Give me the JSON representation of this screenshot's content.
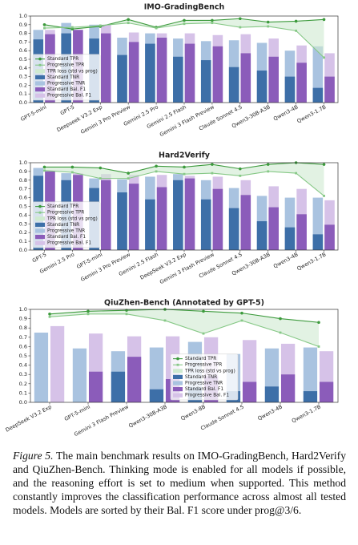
{
  "chart_data": [
    {
      "type": "bar",
      "title": "IMO-GradingBench",
      "categories": [
        "GPT-5-mini",
        "GPT-5",
        "Deepseek V3.2 Exp",
        "Gemini 3 Pro Preview",
        "Gemini 2.5 Pro",
        "Gemini 2.5 Flash",
        "Gemini 3 Flash Preview",
        "Claude Sonnet 4.5",
        "Qwen3-30B-A3B",
        "Qwen3-4B",
        "Qwen3-1.7B"
      ],
      "line_series": [
        {
          "name": "Standard TPR",
          "color": "#3c9a3c",
          "marker": "circle",
          "values": [
            0.9,
            0.85,
            0.88,
            0.96,
            0.87,
            0.95,
            0.95,
            0.97,
            0.93,
            0.94,
            0.96
          ]
        },
        {
          "name": "Progressive TPR",
          "color": "#86c886",
          "marker": "square",
          "values": [
            0.86,
            0.87,
            0.89,
            0.92,
            0.86,
            0.91,
            0.92,
            0.87,
            0.88,
            0.83,
            0.52
          ]
        }
      ],
      "area": {
        "name": "TPR loss (std vs prog)",
        "color": "#cfead0"
      },
      "bar_series": [
        [
          {
            "name": "Standard TNR",
            "color": "#3d6fa8",
            "values": [
              0.73,
              0.8,
              0.74,
              0.55,
              0.68,
              0.53,
              0.49,
              0.41,
              0.37,
              0.3,
              0.17
            ]
          },
          {
            "name": "Progressive TNR",
            "color": "#a9c3e0",
            "values": [
              0.84,
              0.92,
              0.9,
              0.75,
              0.8,
              0.74,
              0.71,
              0.72,
              0.69,
              0.6,
              0.65
            ]
          }
        ],
        [
          {
            "name": "Standard Bal. F1",
            "color": "#8b5cba",
            "values": [
              0.79,
              0.84,
              0.8,
              0.7,
              0.75,
              0.68,
              0.65,
              0.57,
              0.53,
              0.46,
              0.3
            ]
          },
          {
            "name": "Progressive Bal. F1",
            "color": "#d6c2e8",
            "values": [
              0.84,
              0.84,
              0.9,
              0.81,
              0.8,
              0.8,
              0.78,
              0.79,
              0.74,
              0.66,
              0.57
            ]
          }
        ]
      ],
      "ylim": [
        0,
        1
      ],
      "yticks": [
        {
          "value": 0,
          "label": "0.0"
        },
        0.1,
        0.2,
        0.3,
        0.4,
        0.5,
        0.6,
        0.7,
        0.8,
        0.9,
        {
          "value": 1,
          "label": "1.0"
        }
      ],
      "grid": false,
      "legend": "lower left"
    },
    {
      "type": "bar",
      "title": "Hard2Verify",
      "categories": [
        "GPT-5",
        "Gemini 2.5 Pro",
        "GPT-5-mini",
        "Gemini 3 Pro Preview",
        "Gemini 2.5 Flash",
        "DeepSeek V3.2 Exp",
        "Gemini 3 Flash Preview",
        "Claude Sonnet 4.5",
        "Qwen3-30B-A3B",
        "Qwen3-4B",
        "Qwen3-1.7B"
      ],
      "line_series": [
        {
          "name": "Standard TPR",
          "color": "#3c9a3c",
          "marker": "circle",
          "values": [
            0.95,
            0.95,
            0.94,
            0.88,
            0.96,
            0.95,
            0.98,
            0.93,
            0.98,
            1.0,
            0.98
          ]
        },
        {
          "name": "Progressive TPR",
          "color": "#86c886",
          "marker": "square",
          "values": [
            0.91,
            0.89,
            0.82,
            0.82,
            0.9,
            0.87,
            0.88,
            0.85,
            0.9,
            0.88,
            0.62
          ]
        }
      ],
      "area": {
        "name": "TPR loss (std vs prog)",
        "color": "#cfead0"
      },
      "bar_series": [
        [
          {
            "name": "Standard TNR",
            "color": "#3d6fa8",
            "values": [
              0.85,
              0.8,
              0.71,
              0.66,
              0.58,
              0.8,
              0.58,
              0.48,
              0.33,
              0.26,
              0.18
            ]
          },
          {
            "name": "Progressive TNR",
            "color": "#a9c3e0",
            "values": [
              0.94,
              0.88,
              0.82,
              0.81,
              0.84,
              0.87,
              0.8,
              0.71,
              0.62,
              0.6,
              0.6
            ]
          }
        ],
        [
          {
            "name": "Standard Bal. F1",
            "color": "#8b5cba",
            "values": [
              0.9,
              0.86,
              0.8,
              0.76,
              0.72,
              0.82,
              0.7,
              0.63,
              0.49,
              0.41,
              0.29
            ]
          },
          {
            "name": "Progressive Bal. F1",
            "color": "#d6c2e8",
            "values": [
              0.91,
              0.88,
              0.87,
              0.86,
              0.86,
              0.85,
              0.84,
              0.8,
              0.73,
              0.7,
              0.57
            ]
          }
        ]
      ],
      "ylim": [
        0,
        1
      ],
      "yticks": [
        {
          "value": 0,
          "label": "0.0"
        },
        0.1,
        0.2,
        0.3,
        0.4,
        0.5,
        0.6,
        0.7,
        0.8,
        0.9,
        {
          "value": 1,
          "label": "1.0"
        }
      ],
      "grid": false,
      "legend": "lower left"
    },
    {
      "type": "bar",
      "title": "QiuZhen-Bench (Annotated by GPT-5)",
      "categories": [
        "DeepSeek V3.2 Exp",
        "GPT-5-mini",
        "Gemini 3 Flash Preview",
        "Qwen3-30B-A3B",
        "Qwen3-8B",
        "Claude Sonnet 4.5",
        "Qwen3-4B",
        "Qwen3-1.7B"
      ],
      "line_series": [
        {
          "name": "Standard TPR",
          "color": "#3c9a3c",
          "marker": "circle",
          "values": [
            0.95,
            0.98,
            0.99,
            1.0,
            0.98,
            0.96,
            0.9,
            0.86
          ]
        },
        {
          "name": "Progressive TPR",
          "color": "#86c886",
          "marker": "square",
          "values": [
            0.92,
            0.95,
            0.95,
            0.88,
            0.74,
            0.88,
            0.75,
            0.6
          ]
        }
      ],
      "area": {
        "name": "TPR loss (std vs prog)",
        "color": "#cfead0"
      },
      "bar_series": [
        [
          {
            "name": "Standard TNR",
            "color": "#3d6fa8",
            "values": [
              null,
              null,
              0.33,
              0.14,
              0.16,
              0.12,
              0.17,
              0.12
            ]
          },
          {
            "name": "Progressive TNR",
            "color": "#a9c3e0",
            "values": [
              0.75,
              0.58,
              0.55,
              0.59,
              0.65,
              0.52,
              0.58,
              0.59
            ]
          }
        ],
        [
          {
            "name": "Standard Bal. F1",
            "color": "#8b5cba",
            "values": [
              null,
              0.33,
              0.49,
              0.25,
              0.28,
              0.22,
              0.3,
              0.22
            ]
          },
          {
            "name": "Progressive Bal. F1",
            "color": "#d6c2e8",
            "values": [
              0.82,
              0.74,
              0.71,
              0.71,
              0.7,
              0.67,
              0.63,
              0.55
            ]
          }
        ]
      ],
      "ylim": [
        0,
        1
      ],
      "yticks": [
        {
          "value": 0,
          "label": "0.0"
        },
        0.1,
        0.2,
        0.3,
        0.4,
        0.5,
        0.6,
        0.7,
        0.8,
        0.9,
        {
          "value": 1,
          "label": "1.0"
        }
      ],
      "grid": false,
      "legend": "lower center"
    }
  ],
  "caption": {
    "label": "Figure 5.",
    "text": "The main benchmark results on IMO-GradingBench, Hard2Verify and QiuZhen-Bench. Thinking mode is enabled for all models if possible, and the reasoning effort is set to medium when supported. This method constantly improves the classification performance across almost all tested models. Models are sorted by their Bal. F1 score under prog@3/6."
  }
}
